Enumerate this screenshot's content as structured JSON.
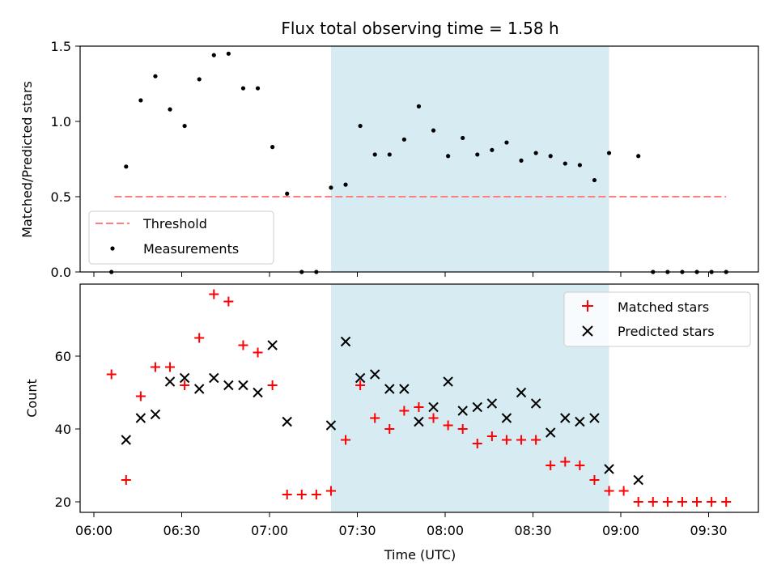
{
  "chart_data": [
    {
      "type": "scatter",
      "title": "Flux total observing time = 1.58 h",
      "ylabel": "Matched/Predicted stars",
      "ylim": [
        0,
        1.5
      ],
      "yticks": [
        "0.0",
        "0.5",
        "1.0",
        "1.5"
      ],
      "highlight_span": {
        "start": "07:21",
        "end": "08:56",
        "color": "#add8e6"
      },
      "threshold": {
        "name": "Threshold",
        "y": 0.5,
        "x_start": "06:07",
        "x_end": "09:36",
        "color": "#ff7f7f"
      },
      "series": [
        {
          "name": "Measurements",
          "color": "#000000",
          "x": [
            "06:06",
            "06:11",
            "06:16",
            "06:21",
            "06:26",
            "06:31",
            "06:36",
            "06:41",
            "06:46",
            "06:51",
            "06:56",
            "07:01",
            "07:06",
            "07:11",
            "07:16",
            "07:21",
            "07:26",
            "07:31",
            "07:36",
            "07:41",
            "07:46",
            "07:51",
            "07:56",
            "08:01",
            "08:06",
            "08:11",
            "08:16",
            "08:21",
            "08:26",
            "08:31",
            "08:36",
            "08:41",
            "08:46",
            "08:51",
            "08:56",
            "09:06",
            "09:11",
            "09:16",
            "09:21",
            "09:26",
            "09:31",
            "09:36"
          ],
          "y": [
            0,
            0.7,
            1.14,
            1.3,
            1.08,
            0.97,
            1.28,
            1.44,
            1.45,
            1.22,
            1.22,
            0.83,
            0.52,
            0,
            0,
            0.56,
            0.58,
            0.97,
            0.78,
            0.78,
            0.88,
            1.1,
            0.94,
            0.77,
            0.89,
            0.78,
            0.81,
            0.86,
            0.74,
            0.79,
            0.77,
            0.72,
            0.71,
            0.61,
            0.79,
            0.77,
            0,
            0,
            0,
            0,
            0,
            0
          ]
        }
      ],
      "legend": {
        "position": "lower-left",
        "entries": [
          "Threshold",
          "Measurements"
        ]
      }
    },
    {
      "type": "scatter",
      "xlabel": "Time (UTC)",
      "ylabel": "Count",
      "xticks": [
        "06:00",
        "06:30",
        "07:00",
        "07:30",
        "08:00",
        "08:30",
        "09:00",
        "09:30"
      ],
      "yticks": [
        "20",
        "40",
        "60"
      ],
      "ylim": [
        18,
        79
      ],
      "highlight_span": {
        "start": "07:21",
        "end": "08:56",
        "color": "#add8e6"
      },
      "series": [
        {
          "name": "Matched stars",
          "marker": "+",
          "color": "#ff0000",
          "x": [
            "06:06",
            "06:11",
            "06:16",
            "06:21",
            "06:26",
            "06:31",
            "06:36",
            "06:41",
            "06:46",
            "06:51",
            "06:56",
            "07:01",
            "07:06",
            "07:11",
            "07:16",
            "07:21",
            "07:26",
            "07:31",
            "07:36",
            "07:41",
            "07:46",
            "07:51",
            "07:56",
            "08:01",
            "08:06",
            "08:11",
            "08:16",
            "08:21",
            "08:26",
            "08:31",
            "08:36",
            "08:41",
            "08:46",
            "08:51",
            "08:56",
            "09:01",
            "09:06",
            "09:11",
            "09:16",
            "09:21",
            "09:26",
            "09:31",
            "09:36"
          ],
          "y": [
            55,
            26,
            49,
            57,
            57,
            52,
            65,
            77,
            75,
            63,
            61,
            52,
            22,
            22,
            22,
            23,
            37,
            52,
            43,
            40,
            45,
            46,
            43,
            41,
            40,
            36,
            38,
            37,
            37,
            37,
            30,
            31,
            30,
            26,
            23,
            23,
            20,
            20,
            20,
            20,
            20,
            20,
            20
          ]
        },
        {
          "name": "Predicted stars",
          "marker": "x",
          "color": "#000000",
          "x": [
            "06:11",
            "06:16",
            "06:21",
            "06:26",
            "06:31",
            "06:36",
            "06:41",
            "06:46",
            "06:51",
            "06:56",
            "07:01",
            "07:06",
            "07:21",
            "07:26",
            "07:31",
            "07:36",
            "07:41",
            "07:46",
            "07:51",
            "07:56",
            "08:01",
            "08:06",
            "08:11",
            "08:16",
            "08:21",
            "08:26",
            "08:31",
            "08:36",
            "08:41",
            "08:46",
            "08:51",
            "08:56",
            "09:06"
          ],
          "y": [
            37,
            43,
            44,
            53,
            54,
            51,
            54,
            52,
            52,
            50,
            63,
            42,
            41,
            64,
            54,
            55,
            51,
            51,
            42,
            46,
            53,
            45,
            46,
            47,
            43,
            50,
            47,
            39,
            43,
            42,
            43,
            29,
            26
          ]
        }
      ],
      "legend": {
        "position": "top-right",
        "entries": [
          "Matched stars",
          "Predicted stars"
        ]
      }
    }
  ]
}
